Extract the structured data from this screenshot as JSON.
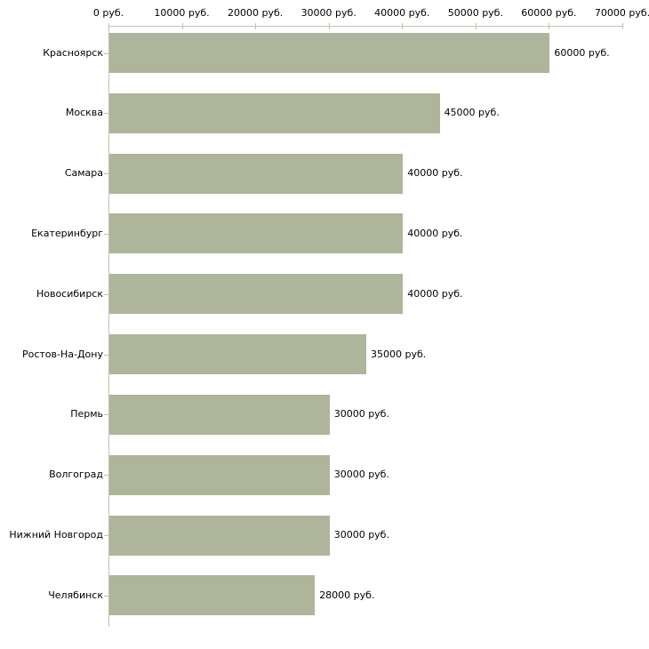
{
  "chart_data": {
    "type": "bar",
    "orientation": "horizontal",
    "title": "",
    "xlabel": "",
    "ylabel": "",
    "grid": "off",
    "legend": "none",
    "categories": [
      "Красноярск",
      "Москва",
      "Самара",
      "Екатеринбург",
      "Новосибирск",
      "Ростов-На-Дону",
      "Пермь",
      "Волгоград",
      "Нижний Новгород",
      "Челябинск"
    ],
    "values": [
      60000,
      45000,
      40000,
      40000,
      40000,
      35000,
      30000,
      30000,
      30000,
      28000
    ],
    "value_labels": [
      "60000 руб.",
      "45000 руб.",
      "40000 руб.",
      "40000 руб.",
      "40000 руб.",
      "35000 руб.",
      "30000 руб.",
      "30000 руб.",
      "30000 руб.",
      "28000 руб."
    ],
    "x_axis": {
      "position": "top",
      "min": 0,
      "max": 70000,
      "ticks": [
        0,
        10000,
        20000,
        30000,
        40000,
        50000,
        60000,
        70000
      ],
      "tick_labels": [
        "0 руб.",
        "10000 руб.",
        "20000 руб.",
        "30000 руб.",
        "40000 руб.",
        "50000 руб.",
        "60000 руб.",
        "70000 руб."
      ]
    },
    "colors": {
      "bar": "#aeb59a",
      "axis_line": "#c2c2b8",
      "tick_mark": "#c9bc8e",
      "text": "#000000",
      "background": "#ffffff"
    }
  }
}
